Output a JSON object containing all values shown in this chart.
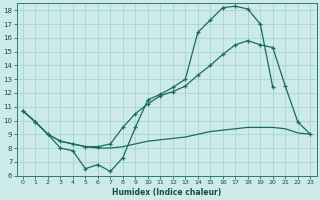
{
  "xlabel": "Humidex (Indice chaleur)",
  "xlim": [
    -0.5,
    23.5
  ],
  "ylim": [
    6,
    18.5
  ],
  "yticks": [
    6,
    7,
    8,
    9,
    10,
    11,
    12,
    13,
    14,
    15,
    16,
    17,
    18
  ],
  "xticks": [
    0,
    1,
    2,
    3,
    4,
    5,
    6,
    7,
    8,
    9,
    10,
    11,
    12,
    13,
    14,
    15,
    16,
    17,
    18,
    19,
    20,
    21,
    22,
    23
  ],
  "line_color": "#1a6b60",
  "bg_color": "#cceae8",
  "grid_color": "#aad4d0",
  "line1_x": [
    0,
    1,
    2,
    3,
    4,
    5,
    6,
    7,
    8,
    9,
    10,
    11,
    12,
    13,
    14,
    15,
    16,
    17,
    18,
    19,
    20
  ],
  "line1_y": [
    10.7,
    9.9,
    9.0,
    8.0,
    7.8,
    6.5,
    6.8,
    6.3,
    7.3,
    9.5,
    11.5,
    11.9,
    12.4,
    13.0,
    16.4,
    17.3,
    18.2,
    18.3,
    18.1,
    17.0,
    12.4
  ],
  "line2_x": [
    0,
    1,
    2,
    3,
    4,
    5,
    6,
    7,
    8,
    9,
    10,
    11,
    12,
    13,
    14,
    15,
    16,
    17,
    18,
    19,
    20,
    21,
    22,
    23
  ],
  "line2_y": [
    10.7,
    9.9,
    9.0,
    8.5,
    8.3,
    8.1,
    8.1,
    8.3,
    9.5,
    10.5,
    11.2,
    11.8,
    12.1,
    12.5,
    13.3,
    14.0,
    14.8,
    15.5,
    15.8,
    15.5,
    15.3,
    12.5,
    9.9,
    9.0
  ],
  "line3_x": [
    0,
    1,
    2,
    3,
    4,
    5,
    6,
    7,
    8,
    9,
    10,
    11,
    12,
    13,
    14,
    15,
    16,
    17,
    18,
    19,
    20,
    21,
    22,
    23
  ],
  "line3_y": [
    10.7,
    9.9,
    9.0,
    8.5,
    8.3,
    8.1,
    8.0,
    8.0,
    8.1,
    8.3,
    8.5,
    8.6,
    8.7,
    8.8,
    9.0,
    9.2,
    9.3,
    9.4,
    9.5,
    9.5,
    9.5,
    9.4,
    9.1,
    9.0
  ]
}
